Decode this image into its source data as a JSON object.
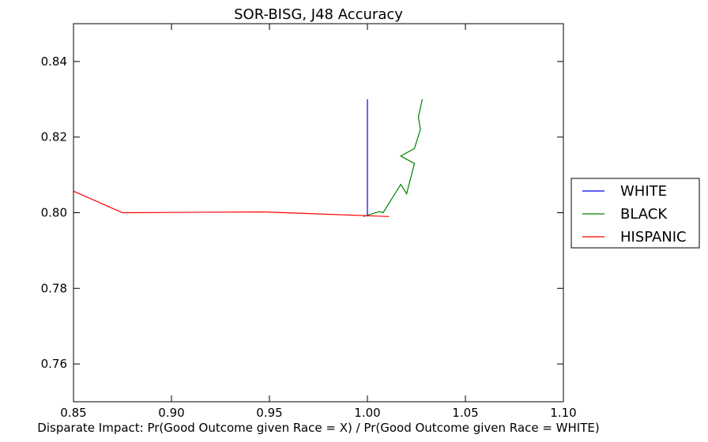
{
  "chart_data": {
    "type": "line",
    "title": "SOR-BISG, J48 Accuracy",
    "xlabel": "Disparate Impact: Pr(Good Outcome given Race = X) / Pr(Good Outcome given Race = WHITE)",
    "ylabel": "",
    "xlim": [
      0.85,
      1.1
    ],
    "ylim": [
      0.75,
      0.85
    ],
    "xticks": [
      "0.85",
      "0.90",
      "0.95",
      "1.00",
      "1.05",
      "1.10"
    ],
    "yticks": [
      "0.76",
      "0.78",
      "0.80",
      "0.82",
      "0.84"
    ],
    "grid": false,
    "legend_position": "outside-right",
    "series": [
      {
        "name": "WHITE",
        "color": "#0000ff",
        "x": [
          1.0,
          1.0,
          1.0,
          1.0,
          1.0,
          1.0,
          1.0
        ],
        "y": [
          0.83,
          0.8075,
          0.8055,
          0.8075,
          0.8,
          0.7995,
          0.799
        ]
      },
      {
        "name": "BLACK",
        "color": "#008000",
        "x": [
          0.998,
          1.006,
          1.008,
          1.017,
          1.02,
          1.024,
          1.017,
          1.024,
          1.027,
          1.026,
          1.028
        ],
        "y": [
          0.799,
          0.8003,
          0.8,
          0.8075,
          0.805,
          0.813,
          0.815,
          0.817,
          0.822,
          0.8253,
          0.83
        ]
      },
      {
        "name": "HISPANIC",
        "color": "#ff0000",
        "x": [
          0.85,
          0.875,
          0.947,
          1.011
        ],
        "y": [
          0.8057,
          0.8,
          0.8002,
          0.799
        ]
      }
    ]
  }
}
